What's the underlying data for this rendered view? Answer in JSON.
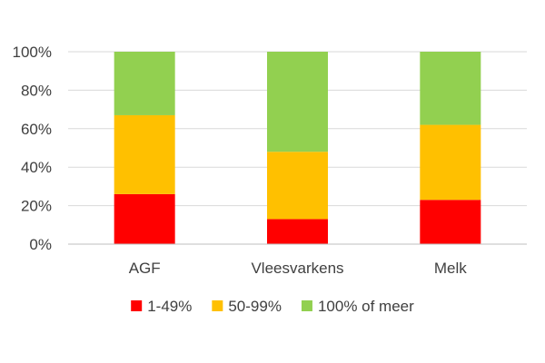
{
  "chart_data": {
    "type": "bar",
    "stacked": true,
    "categories": [
      "AGF",
      "Vleesvarkens",
      "Melk"
    ],
    "series": [
      {
        "name": "1-49%",
        "color": "#ff0000",
        "values": [
          26,
          13,
          23
        ]
      },
      {
        "name": "50-99%",
        "color": "#ffc000",
        "values": [
          41,
          35,
          39
        ]
      },
      {
        "name": "100% of meer",
        "color": "#92d050",
        "values": [
          33,
          52,
          38
        ]
      }
    ],
    "yticks": [
      "0%",
      "20%",
      "40%",
      "60%",
      "80%",
      "100%"
    ],
    "ylim": [
      0,
      100
    ],
    "grid": true,
    "legend_position": "bottom"
  }
}
